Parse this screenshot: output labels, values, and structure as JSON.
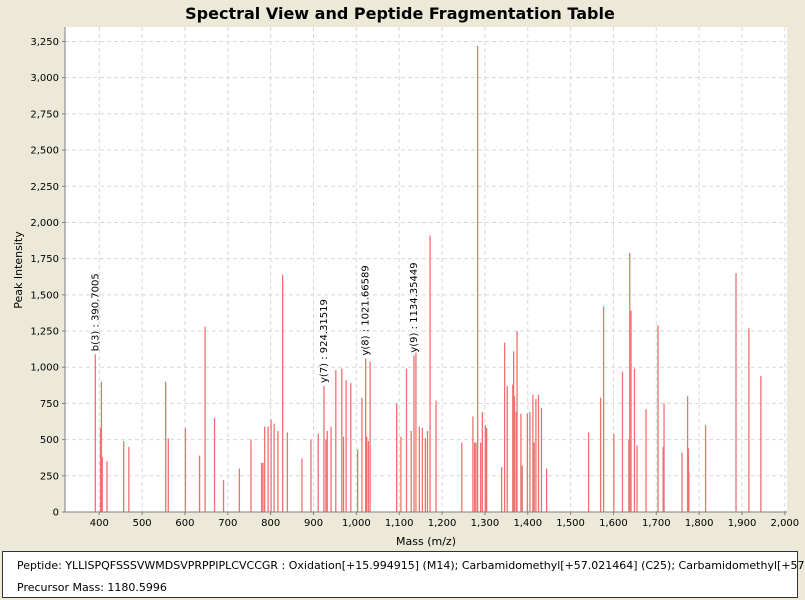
{
  "chart_data": {
    "type": "bar",
    "title": "Spectral View and Peptide Fragmentation Table",
    "xlabel": "Mass (m/z)",
    "ylabel": "Peak Intensity",
    "xlim": [
      320,
      2005
    ],
    "ylim": [
      0,
      3350
    ],
    "x_ticks": [
      400,
      500,
      600,
      700,
      800,
      900,
      1000,
      1100,
      1200,
      1300,
      1400,
      1500,
      1600,
      1700,
      1800,
      1900,
      2000
    ],
    "x_tick_labels": [
      "400",
      "500",
      "600",
      "700",
      "800",
      "900",
      "1,000",
      "1,100",
      "1,200",
      "1,300",
      "1,400",
      "1,500",
      "1,600",
      "1,700",
      "1,800",
      "1,900",
      "2,000"
    ],
    "y_ticks": [
      0,
      250,
      500,
      750,
      1000,
      1250,
      1500,
      1750,
      2000,
      2250,
      2500,
      2750,
      3000,
      3250
    ],
    "y_tick_labels": [
      "0",
      "250",
      "500",
      "750",
      "1,000",
      "1,250",
      "1,500",
      "1,750",
      "2,000",
      "2,250",
      "2,500",
      "2,750",
      "3,000",
      "3,250"
    ],
    "grid": true,
    "bar_color": "#f07070",
    "peaks": [
      [
        390.7,
        1090
      ],
      [
        403,
        580
      ],
      [
        405,
        900
      ],
      [
        407,
        380
      ],
      [
        418,
        350
      ],
      [
        457,
        490
      ],
      [
        469,
        450
      ],
      [
        555,
        900
      ],
      [
        561,
        510
      ],
      [
        601,
        580
      ],
      [
        634,
        390
      ],
      [
        647,
        1280
      ],
      [
        669,
        650
      ],
      [
        690,
        220
      ],
      [
        727,
        300
      ],
      [
        754,
        500
      ],
      [
        779,
        340
      ],
      [
        782,
        340
      ],
      [
        786,
        590
      ],
      [
        794,
        590
      ],
      [
        801,
        640
      ],
      [
        808,
        610
      ],
      [
        817,
        560
      ],
      [
        828,
        1640
      ],
      [
        839,
        550
      ],
      [
        873,
        370
      ],
      [
        894,
        500
      ],
      [
        911,
        540
      ],
      [
        924.3,
        870
      ],
      [
        929,
        500
      ],
      [
        932,
        560
      ],
      [
        941,
        590
      ],
      [
        952,
        980
      ],
      [
        966,
        990
      ],
      [
        970,
        520
      ],
      [
        976,
        910
      ],
      [
        987,
        890
      ],
      [
        1003,
        430
      ],
      [
        1013,
        790
      ],
      [
        1021.7,
        1060
      ],
      [
        1024,
        520
      ],
      [
        1028,
        490
      ],
      [
        1032,
        1040
      ],
      [
        1094,
        750
      ],
      [
        1104,
        520
      ],
      [
        1117,
        990
      ],
      [
        1128,
        560
      ],
      [
        1134.4,
        1080
      ],
      [
        1139,
        1100
      ],
      [
        1147,
        590
      ],
      [
        1154,
        580
      ],
      [
        1161,
        510
      ],
      [
        1166,
        560
      ],
      [
        1172,
        1910
      ],
      [
        1186,
        770
      ],
      [
        1246,
        480
      ],
      [
        1272,
        660
      ],
      [
        1276,
        480
      ],
      [
        1279,
        480
      ],
      [
        1283,
        3220
      ],
      [
        1290,
        480
      ],
      [
        1294,
        690
      ],
      [
        1301,
        600
      ],
      [
        1304,
        580
      ],
      [
        1339,
        310
      ],
      [
        1346,
        1170
      ],
      [
        1352,
        870
      ],
      [
        1365,
        880
      ],
      [
        1367,
        1110
      ],
      [
        1369,
        800
      ],
      [
        1373,
        690
      ],
      [
        1375,
        1250
      ],
      [
        1384,
        680
      ],
      [
        1387,
        320
      ],
      [
        1399,
        680
      ],
      [
        1405,
        690
      ],
      [
        1412,
        810
      ],
      [
        1415,
        480
      ],
      [
        1419,
        780
      ],
      [
        1425,
        810
      ],
      [
        1432,
        720
      ],
      [
        1444,
        300
      ],
      [
        1542,
        550
      ],
      [
        1570,
        790
      ],
      [
        1577,
        1420
      ],
      [
        1601,
        540
      ],
      [
        1621,
        970
      ],
      [
        1636,
        500
      ],
      [
        1638,
        1790
      ],
      [
        1641,
        1390
      ],
      [
        1649,
        990
      ],
      [
        1655,
        460
      ],
      [
        1676,
        710
      ],
      [
        1704,
        1290
      ],
      [
        1716,
        450
      ],
      [
        1718,
        750
      ],
      [
        1760,
        410
      ],
      [
        1773,
        800
      ],
      [
        1775,
        440
      ],
      [
        1776,
        280
      ],
      [
        1815,
        600
      ],
      [
        1886,
        1650
      ],
      [
        1916,
        1270
      ],
      [
        1944,
        940
      ]
    ],
    "annotations": [
      {
        "x": 390.7,
        "y": 1090,
        "label": "b(3) : 390.7005"
      },
      {
        "x": 924.3,
        "y": 870,
        "label": "y(7) : 924.31519"
      },
      {
        "x": 1021.7,
        "y": 1060,
        "label": "y(8) : 1021.66589"
      },
      {
        "x": 1134.4,
        "y": 1080,
        "label": "y(9) : 1134.35449"
      }
    ]
  },
  "info": {
    "peptide": "Peptide: YLLISPQFSSSVWMDSVPRPPIPLCVCCGR : Oxidation[+15.994915] (M14); Carbamidomethyl[+57.021464] (C25); Carbamidomethyl[+57",
    "precursor": "Precursor Mass: 1180.5996"
  }
}
